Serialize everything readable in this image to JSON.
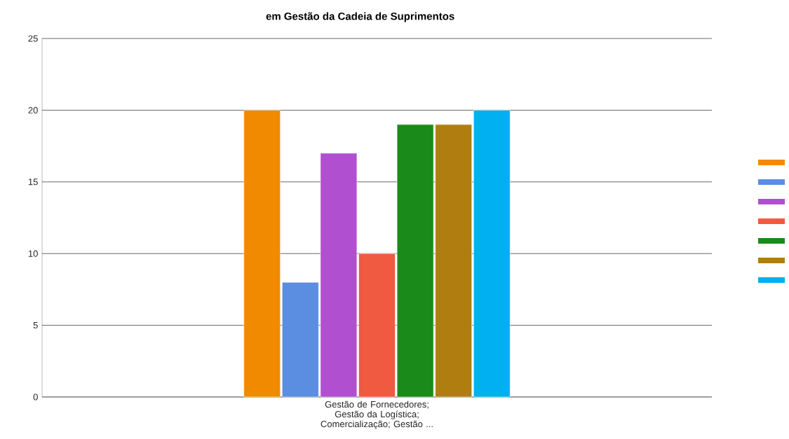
{
  "chart_data": {
    "type": "bar",
    "title": "em Gestão da Cadeia de Suprimentos",
    "categories": [
      "Gestão de Fornecedores; Gestão da Logística; Comercialização; Gestão ..."
    ],
    "series": [
      {
        "color": "#f28a00",
        "values": [
          20
        ]
      },
      {
        "color": "#5b8de0",
        "values": [
          8
        ]
      },
      {
        "color": "#b04fd0",
        "values": [
          17
        ]
      },
      {
        "color": "#f05a40",
        "values": [
          10
        ]
      },
      {
        "color": "#1a8a1a",
        "values": [
          19
        ]
      },
      {
        "color": "#b07d10",
        "values": [
          19
        ]
      },
      {
        "color": "#00b0f0",
        "values": [
          20
        ]
      }
    ],
    "ylim": [
      0,
      25
    ],
    "yticks": [
      0,
      5,
      10,
      15,
      20,
      25
    ],
    "grid": "y"
  }
}
